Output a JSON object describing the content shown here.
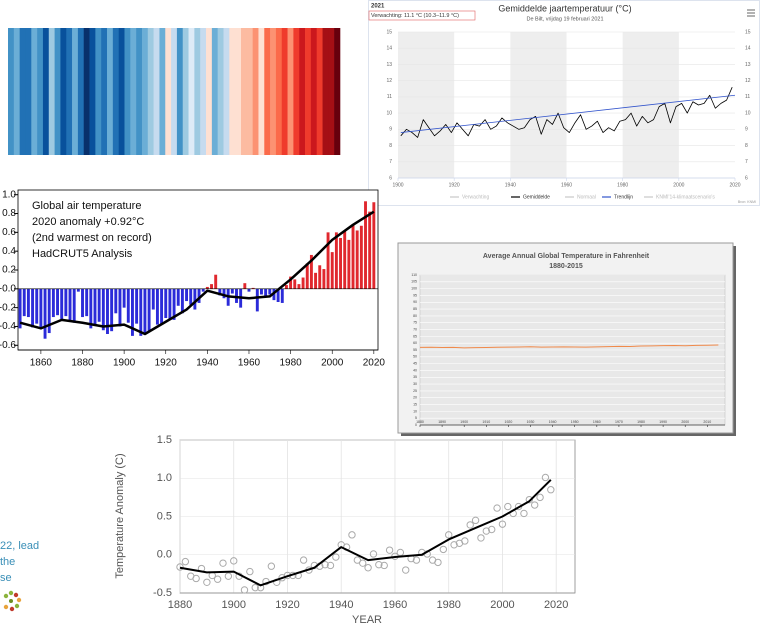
{
  "chart_data": [
    {
      "type": "stripes",
      "values": [
        -0.4,
        -0.3,
        -0.45,
        -0.5,
        -0.3,
        -0.35,
        -0.55,
        -0.2,
        -0.4,
        -0.6,
        -0.45,
        -0.3,
        -0.5,
        -0.65,
        -0.55,
        -0.4,
        -0.5,
        -0.3,
        -0.45,
        -0.6,
        -0.35,
        -0.25,
        -0.4,
        -0.3,
        -0.2,
        -0.05,
        -0.3,
        0.05,
        -0.1,
        -0.35,
        -0.15,
        0.0,
        -0.2,
        -0.1,
        0.05,
        -0.25,
        -0.15,
        -0.05,
        0.1,
        0.05,
        0.2,
        0.15,
        0.3,
        0.1,
        0.35,
        0.25,
        0.4,
        0.45,
        0.3,
        0.5,
        0.55,
        0.45,
        0.6,
        0.5,
        0.7,
        0.65,
        0.75
      ],
      "palette": [
        "#08306b",
        "#08519c",
        "#2171b5",
        "#4292c6",
        "#6baed6",
        "#9ecae1",
        "#c6dbef",
        "#deebf7",
        "#fee0d2",
        "#fcbba1",
        "#fc9272",
        "#fb6a4a",
        "#ef3b2c",
        "#cb181d",
        "#a50f15",
        "#67000d"
      ],
      "clim": [
        -0.65,
        0.75
      ]
    },
    {
      "type": "line",
      "header": "2021",
      "forecast": "Verwachting: 11.1 °C (10.3–11.9 °C)",
      "title": "Gemiddelde jaartemperatuur (°C)",
      "subtitle": "De Bilt, vrijdag 19 februari 2021",
      "credits": "Bron: KNMI",
      "xlim": [
        1900,
        2020
      ],
      "xticks": [
        1900,
        1920,
        1940,
        1960,
        1980,
        2000,
        2020
      ],
      "ylim": [
        6,
        15
      ],
      "yticks": [
        6,
        7,
        8,
        9,
        10,
        11,
        12,
        13,
        14,
        15
      ],
      "grid": "y",
      "bands": true,
      "right_axis": true,
      "series": [
        {
          "name": "Verwachting",
          "color": "#c8c8c8",
          "kind": "legend_only"
        },
        {
          "name": "Gemiddelde",
          "color": "#000000",
          "kind": "line",
          "x": [
            1901,
            1903,
            1905,
            1907,
            1909,
            1911,
            1913,
            1915,
            1917,
            1919,
            1921,
            1923,
            1925,
            1927,
            1929,
            1931,
            1933,
            1935,
            1937,
            1939,
            1941,
            1943,
            1945,
            1947,
            1949,
            1951,
            1953,
            1955,
            1957,
            1959,
            1961,
            1963,
            1965,
            1967,
            1969,
            1971,
            1973,
            1975,
            1977,
            1979,
            1981,
            1983,
            1985,
            1987,
            1989,
            1991,
            1993,
            1995,
            1997,
            1999,
            2001,
            2003,
            2005,
            2007,
            2009,
            2011,
            2013,
            2015,
            2017,
            2019
          ],
          "values": [
            8.6,
            9.0,
            8.8,
            8.5,
            9.6,
            9.1,
            8.6,
            8.9,
            9.3,
            8.8,
            9.4,
            9.0,
            8.6,
            9.3,
            9.2,
            9.6,
            9.0,
            9.2,
            9.7,
            9.4,
            9.2,
            9.0,
            9.1,
            9.6,
            9.8,
            8.7,
            9.6,
            9.3,
            10.0,
            9.1,
            8.8,
            9.4,
            9.9,
            9.0,
            9.2,
            9.5,
            8.8,
            9.1,
            8.9,
            9.5,
            9.6,
            10.0,
            9.2,
            9.8,
            9.4,
            9.6,
            10.4,
            10.6,
            9.4,
            10.4,
            10.6,
            10.0,
            10.7,
            10.5,
            10.6,
            11.1,
            10.3,
            10.6,
            10.8,
            11.6
          ]
        },
        {
          "name": "Normaal",
          "color": "#c8c8c8",
          "kind": "legend_only"
        },
        {
          "name": "Trendlijn",
          "color": "#3355cc",
          "kind": "line",
          "x": [
            1901,
            2020
          ],
          "values": [
            8.8,
            11.1
          ]
        },
        {
          "name": "KNMI'14-klimaatscenario's",
          "color": "#c8c8c8",
          "kind": "legend_only"
        }
      ]
    },
    {
      "type": "bar",
      "annotations": [
        "Global air temperature",
        "2020 anomaly +0.92°C",
        "(2nd warmest on record)",
        "HadCRUT5 Analysis"
      ],
      "xlim": [
        1849,
        2022
      ],
      "xticks": [
        1860,
        1880,
        1900,
        1920,
        1940,
        1960,
        1980,
        2000,
        2020
      ],
      "ylim": [
        -0.65,
        1.05
      ],
      "yticks": [
        {
          "value": 1.0,
          "label": "1.0"
        },
        0.8,
        0.6,
        0.4,
        0.2,
        {
          "value": 0,
          "label": "-0.0"
        },
        -0.2,
        -0.4,
        -0.6
      ],
      "grid": false,
      "positive_color": "#e0282e",
      "negative_color": "#2b2bd9",
      "series": [
        {
          "kind": "bar",
          "x": [
            1850,
            1852,
            1854,
            1856,
            1858,
            1860,
            1862,
            1864,
            1866,
            1868,
            1870,
            1872,
            1874,
            1876,
            1878,
            1880,
            1882,
            1884,
            1886,
            1888,
            1890,
            1892,
            1894,
            1896,
            1898,
            1900,
            1902,
            1904,
            1906,
            1908,
            1910,
            1912,
            1914,
            1916,
            1918,
            1920,
            1922,
            1924,
            1926,
            1928,
            1930,
            1932,
            1934,
            1936,
            1938,
            1940,
            1942,
            1944,
            1946,
            1948,
            1950,
            1952,
            1954,
            1956,
            1958,
            1960,
            1962,
            1964,
            1966,
            1968,
            1970,
            1972,
            1974,
            1976,
            1978,
            1980,
            1982,
            1984,
            1986,
            1988,
            1990,
            1992,
            1994,
            1996,
            1998,
            2000,
            2002,
            2004,
            2006,
            2008,
            2010,
            2012,
            2014,
            2016,
            2018,
            2020
          ],
          "values": [
            -0.42,
            -0.29,
            -0.3,
            -0.41,
            -0.37,
            -0.41,
            -0.53,
            -0.47,
            -0.3,
            -0.28,
            -0.32,
            -0.29,
            -0.35,
            -0.36,
            -0.03,
            -0.3,
            -0.29,
            -0.42,
            -0.38,
            -0.35,
            -0.44,
            -0.48,
            -0.45,
            -0.26,
            -0.4,
            -0.2,
            -0.36,
            -0.5,
            -0.37,
            -0.5,
            -0.48,
            -0.45,
            -0.22,
            -0.38,
            -0.37,
            -0.31,
            -0.33,
            -0.33,
            -0.18,
            -0.26,
            -0.13,
            -0.17,
            -0.22,
            -0.15,
            -0.03,
            0.02,
            0.05,
            0.15,
            -0.07,
            -0.1,
            -0.18,
            -0.05,
            -0.15,
            -0.2,
            0.06,
            -0.03,
            0.01,
            -0.24,
            -0.06,
            -0.09,
            -0.06,
            -0.12,
            -0.14,
            -0.15,
            0.04,
            0.13,
            0.1,
            0.05,
            0.12,
            0.27,
            0.36,
            0.17,
            0.25,
            0.21,
            0.6,
            0.39,
            0.6,
            0.54,
            0.61,
            0.52,
            0.68,
            0.62,
            0.67,
            0.93,
            0.82,
            0.92
          ]
        },
        {
          "kind": "line",
          "color": "#000000",
          "x": [
            1850,
            1860,
            1870,
            1880,
            1890,
            1900,
            1910,
            1920,
            1930,
            1940,
            1950,
            1960,
            1970,
            1980,
            1990,
            2000,
            2010,
            2020
          ],
          "values": [
            -0.36,
            -0.42,
            -0.33,
            -0.36,
            -0.4,
            -0.38,
            -0.48,
            -0.35,
            -0.22,
            -0.02,
            -0.08,
            -0.1,
            -0.08,
            0.1,
            0.3,
            0.52,
            0.68,
            0.82
          ]
        }
      ]
    },
    {
      "type": "line",
      "title": "Average Annual Global Temperature in Fahrenheit",
      "subtitle": "1880-2015",
      "xlim": [
        1880,
        2018
      ],
      "xticks": [
        1880,
        1890,
        1900,
        1910,
        1920,
        1930,
        1940,
        1950,
        1960,
        1970,
        1980,
        1990,
        2000,
        2010
      ],
      "ylim": [
        0,
        110
      ],
      "yticks": [
        0,
        5,
        10,
        15,
        20,
        25,
        30,
        35,
        40,
        45,
        50,
        55,
        60,
        65,
        70,
        75,
        80,
        85,
        90,
        95,
        100,
        105,
        110
      ],
      "grid": "y",
      "series": [
        {
          "kind": "line",
          "color": "#f08a4b",
          "x": [
            1880,
            1885,
            1890,
            1895,
            1900,
            1905,
            1910,
            1915,
            1920,
            1925,
            1930,
            1935,
            1940,
            1945,
            1950,
            1955,
            1960,
            1965,
            1970,
            1975,
            1980,
            1985,
            1990,
            1995,
            2000,
            2005,
            2010,
            2015
          ],
          "values": [
            56.9,
            57.0,
            56.8,
            56.9,
            56.6,
            56.7,
            56.8,
            57.0,
            57.1,
            57.2,
            57.4,
            57.1,
            57.2,
            57.3,
            57.2,
            57.1,
            57.3,
            57.5,
            57.7,
            57.6,
            57.9,
            58.0,
            58.2,
            58.3,
            58.1,
            58.4,
            58.5,
            58.7
          ]
        }
      ]
    },
    {
      "type": "scatter",
      "x_label": "YEAR",
      "y_label": "Temperature Anomaly (C)",
      "xlim": [
        1880,
        2027
      ],
      "xticks": [
        1880,
        1900,
        1920,
        1940,
        1960,
        1980,
        2000,
        2020
      ],
      "ylim": [
        -0.5,
        1.5
      ],
      "yticks": [
        -0.5,
        {
          "value": 0,
          "label": "0.0"
        },
        0.5,
        {
          "value": 1,
          "label": "1.0"
        },
        1.5
      ],
      "grid": "both",
      "series": [
        {
          "kind": "scatter",
          "color": "#aaaaaa",
          "x": [
            1880,
            1882,
            1884,
            1886,
            1888,
            1890,
            1892,
            1894,
            1896,
            1898,
            1900,
            1902,
            1904,
            1906,
            1908,
            1910,
            1912,
            1914,
            1916,
            1918,
            1920,
            1922,
            1924,
            1926,
            1928,
            1930,
            1932,
            1934,
            1936,
            1938,
            1940,
            1942,
            1944,
            1946,
            1948,
            1950,
            1952,
            1954,
            1956,
            1958,
            1960,
            1962,
            1964,
            1966,
            1968,
            1970,
            1972,
            1974,
            1976,
            1978,
            1980,
            1982,
            1984,
            1986,
            1988,
            1990,
            1992,
            1994,
            1996,
            1998,
            2000,
            2002,
            2004,
            2006,
            2008,
            2010,
            2012,
            2014,
            2016,
            2018
          ],
          "values": [
            -0.16,
            -0.09,
            -0.28,
            -0.31,
            -0.18,
            -0.36,
            -0.27,
            -0.32,
            -0.11,
            -0.28,
            -0.08,
            -0.28,
            -0.46,
            -0.22,
            -0.43,
            -0.43,
            -0.35,
            -0.15,
            -0.36,
            -0.3,
            -0.27,
            -0.27,
            -0.27,
            -0.07,
            -0.2,
            -0.14,
            -0.15,
            -0.13,
            -0.14,
            -0.03,
            0.13,
            0.1,
            0.26,
            -0.07,
            -0.11,
            -0.17,
            0.01,
            -0.13,
            -0.14,
            0.06,
            -0.02,
            0.03,
            -0.2,
            -0.05,
            -0.07,
            0.03,
            0.01,
            -0.07,
            -0.1,
            0.07,
            0.26,
            0.13,
            0.15,
            0.18,
            0.39,
            0.45,
            0.22,
            0.31,
            0.33,
            0.61,
            0.4,
            0.63,
            0.54,
            0.63,
            0.54,
            0.72,
            0.65,
            0.75,
            1.01,
            0.85
          ]
        },
        {
          "kind": "line",
          "color": "#000000",
          "x": [
            1880,
            1890,
            1900,
            1910,
            1920,
            1930,
            1940,
            1950,
            1960,
            1970,
            1980,
            1990,
            2000,
            2010,
            2018
          ],
          "values": [
            -0.17,
            -0.23,
            -0.22,
            -0.4,
            -0.28,
            -0.17,
            0.1,
            -0.07,
            -0.03,
            0.0,
            0.2,
            0.35,
            0.5,
            0.7,
            0.98
          ]
        }
      ]
    }
  ],
  "text_fragment": {
    "lines": [
      "22, lead",
      "the",
      "se"
    ]
  }
}
